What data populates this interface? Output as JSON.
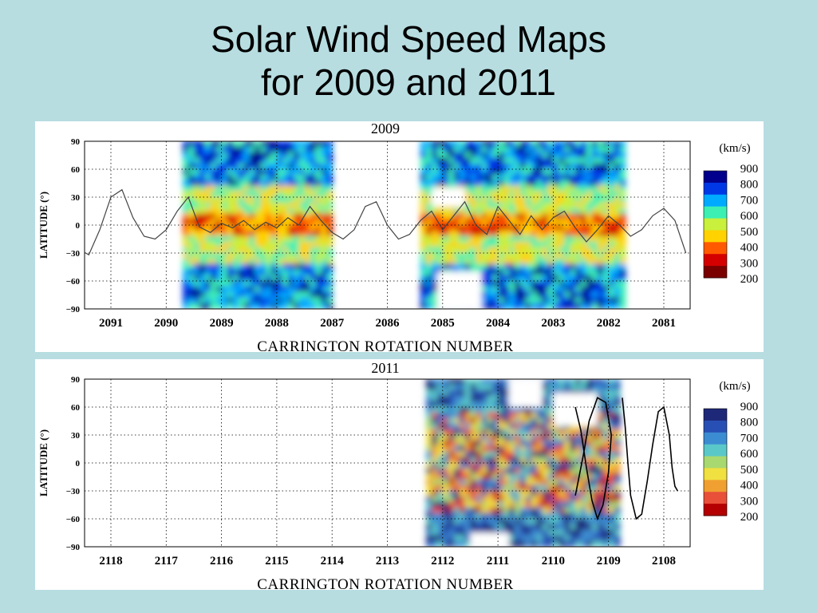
{
  "slide": {
    "title_line1": "Solar Wind Speed Maps",
    "title_line2": "for 2009 and 2011"
  },
  "colors": {
    "background": "#b7dde1",
    "jet_scale": [
      "#7a0000",
      "#d40000",
      "#ff5a00",
      "#ffd200",
      "#c8f03c",
      "#3cf0b4",
      "#00aaff",
      "#0038e6",
      "#00008c"
    ],
    "muted_scale": [
      "#b40000",
      "#e8503a",
      "#f0a030",
      "#f0e040",
      "#a8d870",
      "#5ac8c8",
      "#3c8cd2",
      "#2850b4",
      "#1e2878"
    ],
    "neutral_line": "#444444"
  },
  "chart_data": [
    {
      "type": "heatmap",
      "title": "2009",
      "xlabel": "CARRINGTON ROTATION NUMBER",
      "ylabel": "LATITUDE (°)",
      "x_ticks": [
        "2091",
        "2090",
        "2089",
        "2088",
        "2087",
        "2086",
        "2085",
        "2084",
        "2083",
        "2082",
        "2081"
      ],
      "x_direction": "decreasing",
      "y_ticks": [
        "90",
        "60",
        "30",
        "0",
        "−30",
        "−60",
        "−90"
      ],
      "ylim": [
        -90,
        90
      ],
      "grid": true,
      "colorbar": {
        "unit": "(km/s)",
        "labels": [
          "900",
          "800",
          "700",
          "600",
          "500",
          "400",
          "300",
          "200"
        ],
        "range": [
          200,
          900
        ],
        "scale": "jet"
      },
      "data_coverage_rotations": [
        [
          2089.7,
          2087.0
        ],
        [
          2085.4,
          2081.7
        ]
      ],
      "neutral_line": {
        "rotations": [
          2091.6,
          2091.4,
          2091.2,
          2091.0,
          2090.8,
          2090.6,
          2090.4,
          2090.2,
          2090.0,
          2089.8,
          2089.6,
          2089.4,
          2089.2,
          2089.0,
          2088.8,
          2088.6,
          2088.4,
          2088.2,
          2088.0,
          2087.8,
          2087.6,
          2087.4,
          2087.2,
          2087.0,
          2086.8,
          2086.6,
          2086.4,
          2086.2,
          2086.0,
          2085.8,
          2085.6,
          2085.4,
          2085.2,
          2085.0,
          2084.8,
          2084.6,
          2084.4,
          2084.2,
          2084.0,
          2083.8,
          2083.6,
          2083.4,
          2083.2,
          2083.0,
          2082.8,
          2082.6,
          2082.4,
          2082.2,
          2082.0,
          2081.8,
          2081.6,
          2081.4,
          2081.2,
          2081.0,
          2080.8,
          2080.6
        ],
        "latitudes": [
          -25,
          -32,
          -5,
          30,
          38,
          8,
          -12,
          -15,
          -5,
          15,
          30,
          -2,
          -8,
          2,
          -3,
          5,
          -5,
          3,
          -3,
          8,
          0,
          20,
          5,
          -8,
          -15,
          -5,
          20,
          25,
          0,
          -15,
          -10,
          5,
          15,
          -5,
          10,
          25,
          0,
          -10,
          20,
          5,
          -10,
          10,
          -5,
          8,
          15,
          -3,
          -18,
          -5,
          10,
          0,
          -12,
          -5,
          10,
          18,
          5,
          -30
        ]
      }
    },
    {
      "type": "heatmap",
      "title": "2011",
      "xlabel": "CARRINGTON ROTATION NUMBER",
      "ylabel": "LATITUDE (°)",
      "x_ticks": [
        "2118",
        "2117",
        "2116",
        "2115",
        "2114",
        "2113",
        "2112",
        "2111",
        "2110",
        "2109",
        "2108"
      ],
      "x_direction": "decreasing",
      "y_ticks": [
        "90",
        "60",
        "30",
        "0",
        "−30",
        "−60",
        "−90"
      ],
      "ylim": [
        -90,
        90
      ],
      "grid": true,
      "colorbar": {
        "unit": "(km/s)",
        "labels": [
          "900",
          "800",
          "700",
          "600",
          "500",
          "400",
          "300",
          "200"
        ],
        "range": [
          200,
          900
        ],
        "scale": "muted"
      },
      "data_coverage_rotations": [
        [
          2112.3,
          2108.8
        ]
      ],
      "neutral_line": {
        "segments": [
          {
            "rotations": [
              2109.6,
              2109.5,
              2109.4,
              2109.3,
              2109.2,
              2109.1,
              2109.0,
              2108.95,
              2109.05,
              2109.2,
              2109.35,
              2109.45,
              2109.55,
              2109.6
            ],
            "latitudes": [
              60,
              35,
              -5,
              -40,
              -60,
              -45,
              -10,
              30,
              65,
              70,
              45,
              10,
              -20,
              -35
            ]
          },
          {
            "rotations": [
              2108.75,
              2108.7,
              2108.65,
              2108.6,
              2108.5,
              2108.4,
              2108.3,
              2108.2,
              2108.1,
              2108.0,
              2107.9,
              2107.85,
              2107.8,
              2107.75
            ],
            "latitudes": [
              70,
              40,
              0,
              -35,
              -60,
              -55,
              -20,
              20,
              55,
              60,
              30,
              -5,
              -25,
              -30
            ]
          }
        ]
      }
    }
  ]
}
